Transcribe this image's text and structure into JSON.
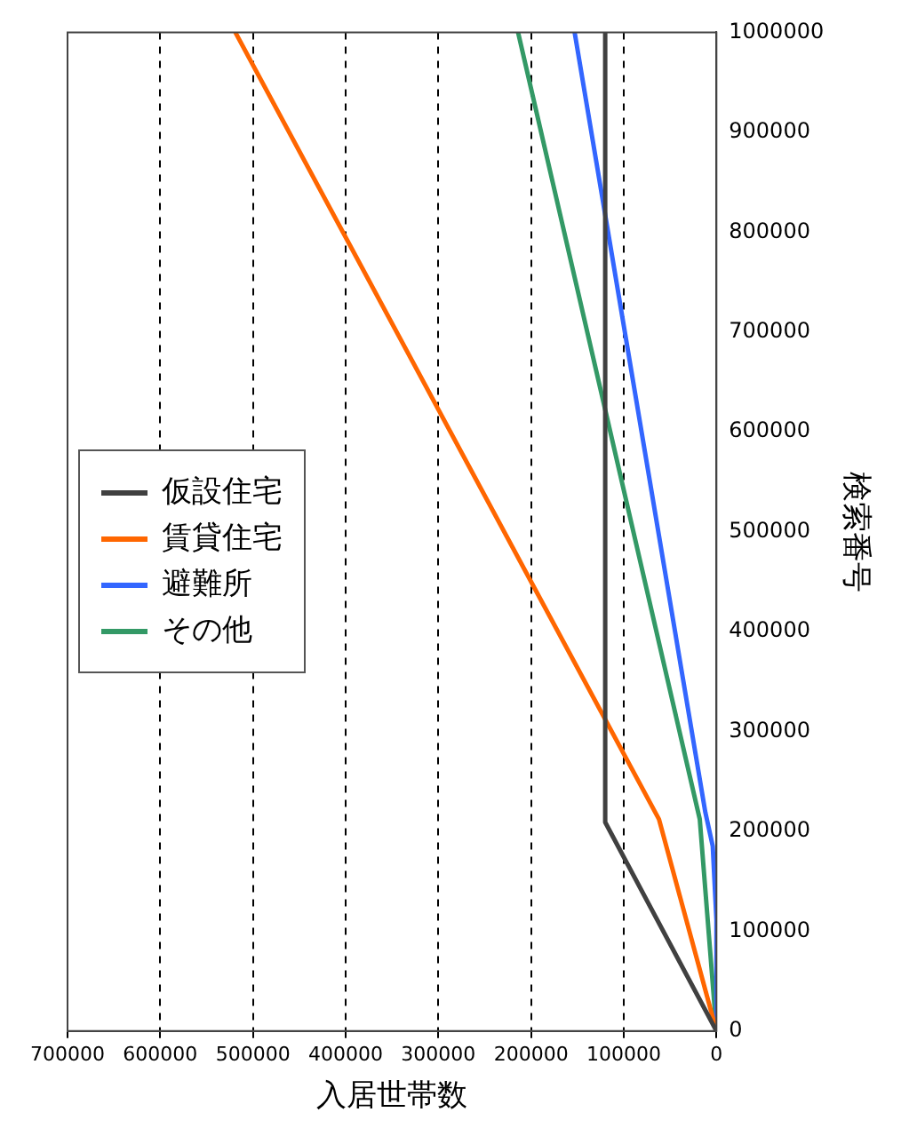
{
  "chart_data": {
    "type": "line",
    "xlabel": "入居世帯数",
    "ylabel": "検索番号",
    "xlim": [
      700000,
      0
    ],
    "xticks": [
      0,
      100000,
      200000,
      300000,
      400000,
      500000,
      600000,
      700000
    ],
    "ylim": [
      0,
      1000000
    ],
    "yticks": [
      0,
      100000,
      200000,
      300000,
      400000,
      500000,
      600000,
      700000,
      800000,
      900000,
      1000000
    ],
    "grid": "x",
    "legend": "left",
    "series": [
      {
        "name": "仮設住宅",
        "color": "#404040",
        "x": [
          0,
          120000,
          120000
        ],
        "values": [
          0,
          209000,
          1000000
        ]
      },
      {
        "name": "賃貸住宅",
        "color": "#ff6600",
        "x": [
          0,
          62000,
          519000
        ],
        "values": [
          0,
          212000,
          1000000
        ]
      },
      {
        "name": "避難所",
        "color": "#3366ff",
        "x": [
          0,
          0,
          4000,
          12000,
          153000
        ],
        "values": [
          0,
          111000,
          185000,
          219000,
          1000000
        ]
      },
      {
        "name": "その他",
        "color": "#339966",
        "x": [
          0,
          18000,
          214000
        ],
        "values": [
          0,
          212000,
          1000000
        ]
      }
    ]
  }
}
